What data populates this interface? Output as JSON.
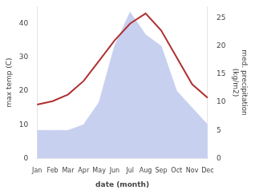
{
  "chart_data": {
    "type": "line",
    "categories": [
      "Jan",
      "Feb",
      "Mar",
      "Apr",
      "May",
      "Jun",
      "Jul",
      "Aug",
      "Sep",
      "Oct",
      "Nov",
      "Dec"
    ],
    "series": [
      {
        "type": "area",
        "color": "#c8d0f0",
        "axis": "y2",
        "values": [
          5,
          5,
          5,
          6,
          10,
          20,
          26,
          22,
          20,
          12,
          9,
          6
        ]
      },
      {
        "type": "line",
        "color": "#b03030",
        "values": [
          16,
          17,
          19,
          23,
          29,
          35,
          40,
          43,
          38,
          30,
          22,
          18
        ]
      }
    ],
    "xlabel": "date (month)",
    "ylabel": "max temp (C)",
    "y2label": "med. precipitation\n(kg/m2)",
    "ylim": [
      0,
      45
    ],
    "yticks": [
      0,
      10,
      20,
      30,
      40
    ],
    "y2lim": [
      0,
      27
    ],
    "y2ticks": [
      0,
      5,
      10,
      15,
      20,
      25
    ],
    "grid": false
  }
}
